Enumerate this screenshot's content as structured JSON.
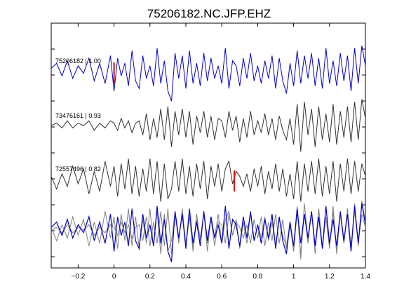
{
  "chart_data": {
    "type": "line",
    "title": "75206182.NC.JFP.EHZ",
    "xlabel": "",
    "ylabel": "",
    "xlim": [
      -0.35,
      1.4
    ],
    "xticks": [
      -0.2,
      0,
      0.2,
      0.4,
      0.6,
      0.8,
      1,
      1.2,
      1.4
    ],
    "xtick_labels": [
      "−0.2",
      "0",
      "0.2",
      "0.4",
      "0.6",
      "0.8",
      "1",
      "1.2",
      "1.4"
    ],
    "grid": false,
    "colors": {
      "primary": "#0000cc",
      "secondary": "#333333",
      "overlay_gray": "#808080",
      "pick": "#dd0000"
    },
    "series": [
      {
        "name": "75206182 | 1.00",
        "color": "#0000cc",
        "pick": 0.0,
        "x": [
          -0.35,
          -0.32,
          -0.29,
          -0.26,
          -0.23,
          -0.2,
          -0.17,
          -0.14,
          -0.11,
          -0.08,
          -0.05,
          -0.02,
          0,
          0.02,
          0.04,
          0.06,
          0.08,
          0.1,
          0.12,
          0.14,
          0.16,
          0.18,
          0.2,
          0.22,
          0.24,
          0.26,
          0.28,
          0.3,
          0.32,
          0.34,
          0.36,
          0.38,
          0.4,
          0.42,
          0.44,
          0.46,
          0.48,
          0.5,
          0.52,
          0.54,
          0.56,
          0.58,
          0.6,
          0.62,
          0.64,
          0.66,
          0.68,
          0.7,
          0.72,
          0.74,
          0.76,
          0.78,
          0.8,
          0.82,
          0.84,
          0.86,
          0.88,
          0.9,
          0.92,
          0.94,
          0.96,
          0.98,
          1.0,
          1.02,
          1.04,
          1.06,
          1.08,
          1.1,
          1.12,
          1.14,
          1.16,
          1.18,
          1.2,
          1.22,
          1.24,
          1.26,
          1.28,
          1.3,
          1.32,
          1.34,
          1.36,
          1.38,
          1.4
        ],
        "y": [
          0.1,
          0.3,
          -0.2,
          0.4,
          -0.3,
          0.2,
          -0.1,
          0.5,
          -0.4,
          0.3,
          -0.5,
          0.6,
          -0.8,
          0.5,
          -0.2,
          0.3,
          -0.6,
          0.8,
          -0.4,
          -0.7,
          0.6,
          -0.3,
          0.2,
          -0.6,
          0.9,
          -0.5,
          0.4,
          -0.8,
          -1.2,
          0.7,
          -0.3,
          0.6,
          -0.7,
          0.8,
          -0.5,
          0.3,
          -0.6,
          0.7,
          -0.4,
          0.5,
          -0.3,
          0.2,
          -0.5,
          0.9,
          -0.7,
          0.4,
          0.2,
          -0.6,
          0.5,
          -0.3,
          0.7,
          -0.4,
          0.2,
          -0.5,
          0.4,
          -0.3,
          0.6,
          -0.7,
          0.5,
          -0.4,
          -0.9,
          0.3,
          -0.6,
          0.8,
          -0.5,
          0.6,
          -0.3,
          0.7,
          -0.6,
          0.5,
          -0.7,
          0.9,
          -0.5,
          0.4,
          -0.6,
          0.7,
          -0.4,
          0.6,
          -0.8,
          0.9,
          -0.5,
          1.0,
          0.2
        ]
      },
      {
        "name": "73476161 | 0.93",
        "color": "#333333",
        "x": [
          -0.35,
          -0.32,
          -0.29,
          -0.26,
          -0.23,
          -0.2,
          -0.17,
          -0.14,
          -0.11,
          -0.08,
          -0.05,
          -0.02,
          0,
          0.02,
          0.04,
          0.06,
          0.08,
          0.1,
          0.12,
          0.14,
          0.16,
          0.18,
          0.2,
          0.22,
          0.24,
          0.26,
          0.28,
          0.3,
          0.32,
          0.34,
          0.36,
          0.38,
          0.4,
          0.42,
          0.44,
          0.46,
          0.48,
          0.5,
          0.52,
          0.54,
          0.56,
          0.58,
          0.6,
          0.62,
          0.64,
          0.66,
          0.68,
          0.7,
          0.72,
          0.74,
          0.76,
          0.78,
          0.8,
          0.82,
          0.84,
          0.86,
          0.88,
          0.9,
          0.92,
          0.94,
          0.96,
          0.98,
          1.0,
          1.02,
          1.04,
          1.06,
          1.08,
          1.1,
          1.12,
          1.14,
          1.16,
          1.18,
          1.2,
          1.22,
          1.24,
          1.26,
          1.28,
          1.3,
          1.32,
          1.34,
          1.36,
          1.38,
          1.4
        ],
        "y": [
          0.0,
          0.1,
          -0.1,
          0.2,
          -0.1,
          0.1,
          0.0,
          0.2,
          -0.2,
          0.1,
          -0.1,
          0.2,
          0.1,
          -0.2,
          0.3,
          -0.1,
          0.2,
          -0.3,
          0.1,
          0.2,
          -0.4,
          0.5,
          -0.6,
          0.3,
          -0.5,
          0.7,
          -0.6,
          0.8,
          -0.9,
          0.6,
          -0.4,
          0.7,
          -0.5,
          0.6,
          -0.8,
          0.4,
          -0.3,
          0.6,
          -0.5,
          0.4,
          -0.6,
          0.3,
          0.2,
          -0.5,
          0.6,
          -0.2,
          0.4,
          -0.7,
          0.3,
          -0.5,
          0.6,
          -0.4,
          0.2,
          -0.3,
          0.5,
          -0.4,
          0.3,
          -0.6,
          0.4,
          -0.2,
          -0.6,
          0.3,
          -0.8,
          0.9,
          -1.1,
          1.0,
          -0.4,
          0.7,
          -0.9,
          0.8,
          -0.6,
          0.5,
          -0.7,
          0.9,
          -0.8,
          0.6,
          -0.5,
          0.8,
          -0.7,
          1.0,
          -0.6,
          1.1,
          0.3
        ]
      },
      {
        "name": "72557496 | 0.82",
        "color": "#333333",
        "pick": 0.67,
        "x": [
          -0.35,
          -0.32,
          -0.29,
          -0.26,
          -0.23,
          -0.2,
          -0.17,
          -0.14,
          -0.11,
          -0.08,
          -0.05,
          -0.02,
          0,
          0.02,
          0.04,
          0.06,
          0.08,
          0.1,
          0.12,
          0.14,
          0.16,
          0.18,
          0.2,
          0.22,
          0.24,
          0.26,
          0.28,
          0.3,
          0.32,
          0.34,
          0.36,
          0.38,
          0.4,
          0.42,
          0.44,
          0.46,
          0.48,
          0.5,
          0.52,
          0.54,
          0.56,
          0.58,
          0.6,
          0.62,
          0.64,
          0.66,
          0.68,
          0.7,
          0.72,
          0.74,
          0.76,
          0.78,
          0.8,
          0.82,
          0.84,
          0.86,
          0.88,
          0.9,
          0.92,
          0.94,
          0.96,
          0.98,
          1.0,
          1.02,
          1.04,
          1.06,
          1.08,
          1.1,
          1.12,
          1.14,
          1.16,
          1.18,
          1.2,
          1.22,
          1.24,
          1.26,
          1.28,
          1.3,
          1.32,
          1.34,
          1.36,
          1.38,
          1.4
        ],
        "y": [
          0.1,
          -0.4,
          0.2,
          -0.3,
          0.5,
          -0.2,
          0.4,
          -0.6,
          0.3,
          -0.5,
          0.7,
          -0.3,
          0.5,
          -0.7,
          0.6,
          -0.4,
          0.8,
          -0.6,
          0.5,
          -0.7,
          0.4,
          -0.5,
          0.8,
          -0.6,
          0.7,
          -0.9,
          0.6,
          -0.8,
          -0.4,
          0.7,
          -0.5,
          0.8,
          -0.6,
          0.5,
          -0.7,
          0.6,
          -0.4,
          0.7,
          -0.8,
          0.5,
          -0.3,
          0.6,
          -0.5,
          0.4,
          0.7,
          -0.2,
          0.3,
          0.1,
          -0.3,
          0.2,
          -0.5,
          0.4,
          -0.3,
          0.5,
          -0.6,
          0.3,
          -0.4,
          0.6,
          -0.5,
          0.4,
          -0.7,
          0.2,
          -0.8,
          0.7,
          -0.9,
          0.6,
          -0.5,
          0.7,
          -0.6,
          0.8,
          -0.7,
          0.5,
          -0.6,
          0.7,
          -0.9,
          0.6,
          -0.5,
          0.8,
          -0.6,
          0.7,
          -0.5,
          0.6,
          0.1
        ]
      }
    ],
    "overlay": "all three traces superimposed in the bottom panel"
  }
}
